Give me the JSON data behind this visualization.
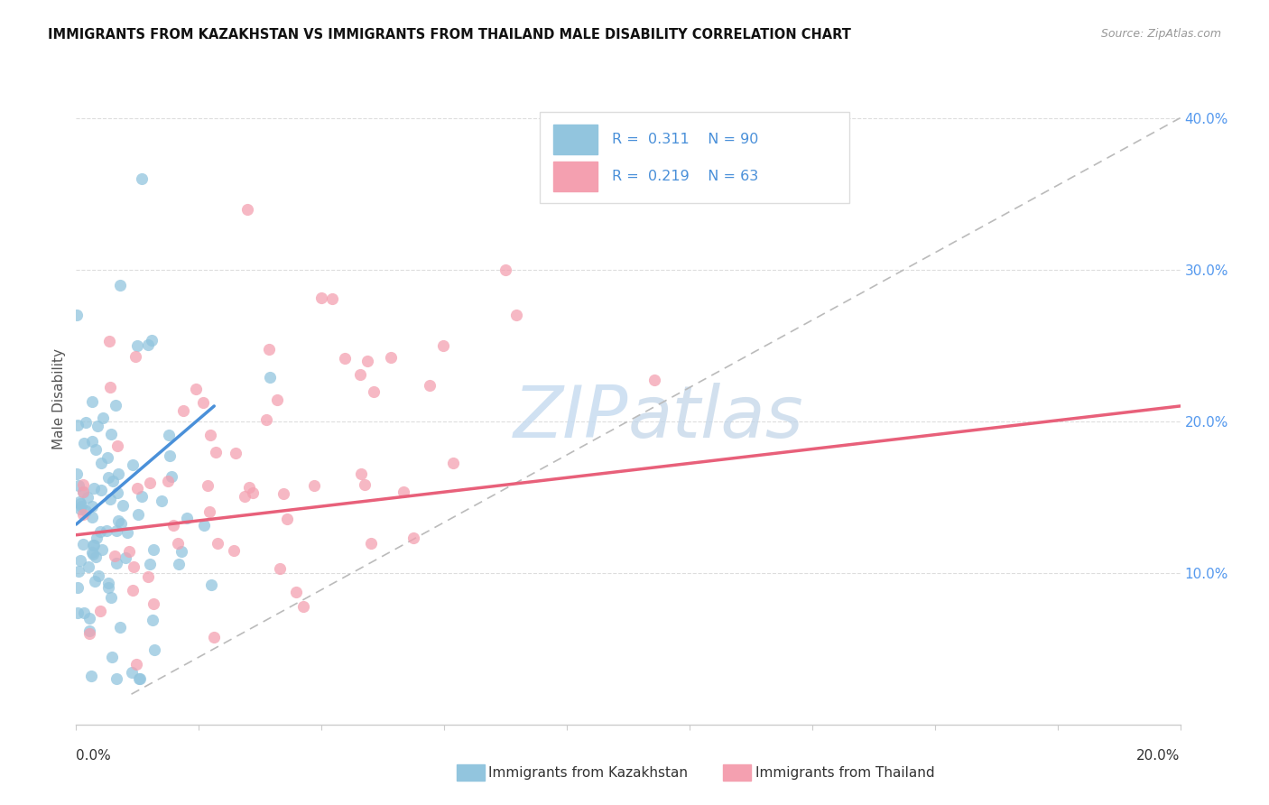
{
  "title": "IMMIGRANTS FROM KAZAKHSTAN VS IMMIGRANTS FROM THAILAND MALE DISABILITY CORRELATION CHART",
  "source": "Source: ZipAtlas.com",
  "ylabel": "Male Disability",
  "ytick_values": [
    0.1,
    0.2,
    0.3,
    0.4
  ],
  "xlim": [
    0.0,
    0.2
  ],
  "ylim": [
    0.0,
    0.43
  ],
  "legend_r1": "R = 0.311",
  "legend_n1": "N = 90",
  "legend_r2": "R = 0.219",
  "legend_n2": "N = 63",
  "color_kaz": "#92C5DE",
  "color_thai": "#F4A0B0",
  "trendline_kaz_color": "#4A90D9",
  "trendline_thai_color": "#E8607A",
  "dashed_line_color": "#BBBBBB",
  "background_color": "#FFFFFF",
  "kaz_seed": 10,
  "thai_seed": 20
}
